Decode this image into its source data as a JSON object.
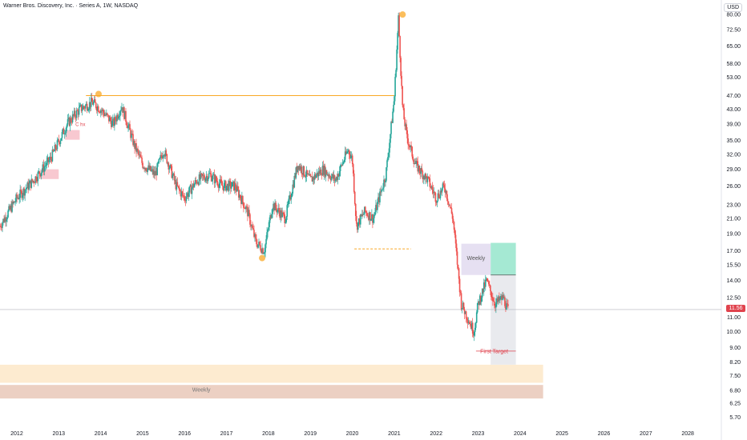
{
  "header": {
    "title": "Warner Bros. Discovery, Inc. · Series A, 1W, NASDAQ",
    "currency": "USD"
  },
  "price_badge": {
    "value": "11.56",
    "color": "#e0434e"
  },
  "annotations": {
    "weekly_box_label": "Weekly",
    "weekly_zone_label": "Weekly",
    "first_target_label": "First Target",
    "ch_label": "C hx"
  },
  "colors": {
    "up": "#26a69a",
    "down": "#ef5350",
    "highlight": "#f9a825",
    "weekly_zone": "#e9c8b8",
    "weekly_zone_upper": "#fde8c8",
    "target_zone": "#e6f7f0",
    "target_fill": "#7fe0c0",
    "pink_box": "#f8c8d0",
    "lavender_box": "#e6e0f2"
  },
  "chart_data": {
    "type": "candlestick",
    "title": "Warner Bros. Discovery, Inc. · Series A, 1W, NASDAQ",
    "xlabel": "",
    "ylabel": "",
    "y_scale": "log",
    "ylim": [
      5.4,
      88
    ],
    "xlim": [
      2011.6,
      2028.8
    ],
    "y_ticks": [
      5.7,
      6.25,
      6.8,
      7.5,
      8.2,
      9.0,
      10.0,
      11.0,
      12.5,
      14.0,
      15.5,
      17.0,
      19.0,
      21.0,
      23.0,
      26.0,
      29.0,
      32.0,
      35.0,
      39.0,
      43.0,
      47.0,
      53.0,
      58.0,
      65.0,
      72.5,
      80.0
    ],
    "x_ticks": [
      "2012",
      "2013",
      "2014",
      "2015",
      "2016",
      "2017",
      "2018",
      "2019",
      "2020",
      "2021",
      "2022",
      "2023",
      "2024",
      "2025",
      "2026",
      "2027",
      "2028"
    ],
    "series": [
      {
        "x": [
          2011.6,
          2012.0,
          2012.4,
          2012.8,
          2013.2,
          2013.5,
          2013.8,
          2014.0,
          2014.3,
          2014.5,
          2014.8,
          2015.0,
          2015.3,
          2015.5,
          2015.8,
          2016.0,
          2016.3,
          2016.6,
          2016.9,
          2017.2,
          2017.5,
          2017.7,
          2017.9,
          2018.1,
          2018.4,
          2018.7,
          2019.0,
          2019.3,
          2019.6,
          2019.9,
          2020.0,
          2020.1,
          2020.3,
          2020.5,
          2020.8,
          2021.0,
          2021.1,
          2021.2,
          2021.3,
          2021.5,
          2021.8,
          2022.0,
          2022.2,
          2022.4,
          2022.6,
          2022.9,
          2023.0,
          2023.2,
          2023.4,
          2023.6,
          2023.7
        ],
        "values": [
          20,
          24,
          27,
          31,
          39,
          43,
          45,
          43,
          39,
          44,
          34,
          30,
          28,
          33,
          26,
          24,
          27,
          28,
          26,
          26,
          22,
          18,
          17,
          23,
          21,
          30,
          27,
          29,
          27,
          33,
          31,
          20,
          22,
          21,
          28,
          46,
          78,
          43,
          36,
          30,
          27,
          24,
          26,
          21,
          12,
          10,
          12,
          14,
          12,
          12.5,
          11.56
        ]
      }
    ],
    "horizontal_levels": [
      47.0,
      17.2,
      14.5,
      11.56
    ],
    "zones": [
      "Weekly",
      "First Target"
    ]
  }
}
